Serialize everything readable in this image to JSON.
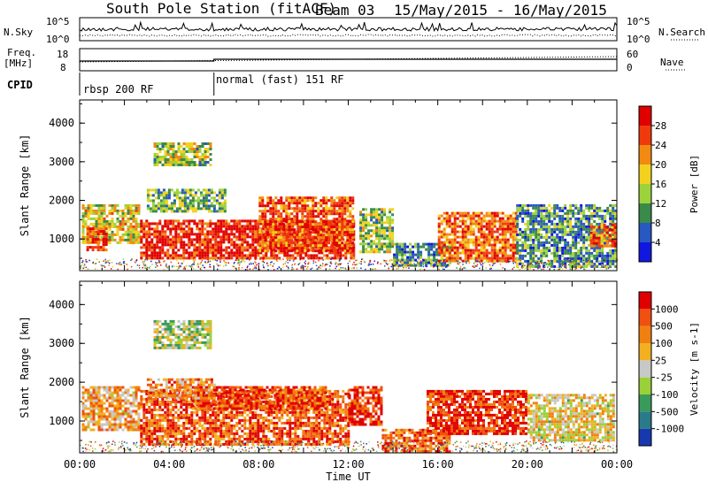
{
  "header": {
    "station": "South Pole Station (fitACF)",
    "beam": "Beam 03",
    "dates": "15/May/2015 - 16/May/2015"
  },
  "side_labels": {
    "nsky": "N.Sky",
    "nsearch": "N.Search",
    "freq_top": "Freq.",
    "freq_unit": "[MHz]",
    "nave": "Nave",
    "cpid": "CPID"
  },
  "noise_axis_left": [
    "10^5",
    "10^0"
  ],
  "noise_axis_right": [
    "10^5",
    "10^0"
  ],
  "freq_axis": [
    "18",
    "8"
  ],
  "nave_axis": [
    "60",
    "0"
  ],
  "cpid_segments": [
    {
      "label": "rbsp 200 RF"
    },
    {
      "label": "normal (fast) 151 RF"
    }
  ],
  "chart_data": [
    {
      "type": "heatmap",
      "name": "Power",
      "ylabel": "Slant Range [km]",
      "yticks": [
        "4000",
        "3000",
        "2000",
        "1000"
      ],
      "ylim": [
        180,
        4600
      ],
      "xlim_hours": [
        0,
        24
      ],
      "colorbar_label": "Power [dB]",
      "colorbar_ticks": [
        "28",
        "24",
        "20",
        "16",
        "12",
        "8",
        "4"
      ],
      "colorbar_colors": [
        "#1018e0",
        "#2858c0",
        "#3a8a4a",
        "#9cd23c",
        "#f2d21e",
        "#f28a12",
        "#f03a0e",
        "#e00000"
      ],
      "echo_bands": [
        {
          "t": [
            0.1,
            2.6
          ],
          "r": [
            900,
            1900
          ],
          "level": 0.55
        },
        {
          "t": [
            0.3,
            1.2
          ],
          "r": [
            700,
            1300
          ],
          "level": 0.85
        },
        {
          "t": [
            2.7,
            12.2
          ],
          "r": [
            500,
            1500
          ],
          "level": 0.9
        },
        {
          "t": [
            8.0,
            12.2
          ],
          "r": [
            700,
            2100
          ],
          "level": 0.8
        },
        {
          "t": [
            3.0,
            6.5
          ],
          "r": [
            1700,
            2300
          ],
          "level": 0.4
        },
        {
          "t": [
            3.3,
            5.8
          ],
          "r": [
            2900,
            3500
          ],
          "level": 0.45
        },
        {
          "t": [
            12.5,
            14.0
          ],
          "r": [
            700,
            1800
          ],
          "level": 0.45
        },
        {
          "t": [
            14.0,
            16.5
          ],
          "r": [
            300,
            900
          ],
          "level": 0.3
        },
        {
          "t": [
            16.0,
            19.5
          ],
          "r": [
            400,
            1700
          ],
          "level": 0.75
        },
        {
          "t": [
            19.5,
            23.9
          ],
          "r": [
            300,
            1900
          ],
          "level": 0.3
        },
        {
          "t": [
            22.8,
            23.9
          ],
          "r": [
            800,
            1400
          ],
          "level": 0.75
        }
      ]
    },
    {
      "type": "heatmap",
      "name": "Velocity",
      "ylabel": "Slant Range [km]",
      "xlabel": "Time UT",
      "yticks": [
        "4000",
        "3000",
        "2000",
        "1000"
      ],
      "xticks": [
        "00:00",
        "04:00",
        "08:00",
        "12:00",
        "16:00",
        "20:00",
        "00:00"
      ],
      "ylim": [
        180,
        4600
      ],
      "xlim_hours": [
        0,
        24
      ],
      "colorbar_label": "Velocity [m s-1]",
      "colorbar_ticks": [
        "1000",
        "500",
        "100",
        "25",
        "-25",
        "-100",
        "-500",
        "-1000"
      ],
      "colorbar_colors": [
        "#1838b0",
        "#2a7a8a",
        "#3a9a5a",
        "#9ad03a",
        "#c8c8c8",
        "#f2b020",
        "#f08010",
        "#f05010",
        "#e00000"
      ],
      "echo_bands": [
        {
          "t": [
            0.1,
            2.6
          ],
          "r": [
            800,
            1900
          ],
          "level": 0.65
        },
        {
          "t": [
            2.7,
            12.0
          ],
          "r": [
            400,
            1800
          ],
          "level": 0.82
        },
        {
          "t": [
            5.0,
            11.0
          ],
          "r": [
            1300,
            1900
          ],
          "level": 0.85
        },
        {
          "t": [
            3.0,
            6.0
          ],
          "r": [
            1600,
            2100
          ],
          "level": 0.7
        },
        {
          "t": [
            3.3,
            5.8
          ],
          "r": [
            2900,
            3600
          ],
          "level": 0.45
        },
        {
          "t": [
            12.0,
            13.5
          ],
          "r": [
            900,
            1900
          ],
          "level": 0.92
        },
        {
          "t": [
            13.5,
            16.5
          ],
          "r": [
            200,
            800
          ],
          "level": 0.8
        },
        {
          "t": [
            15.5,
            20.0
          ],
          "r": [
            700,
            1800
          ],
          "level": 0.9
        },
        {
          "t": [
            20.0,
            23.9
          ],
          "r": [
            500,
            1700
          ],
          "level": 0.55
        }
      ]
    }
  ]
}
